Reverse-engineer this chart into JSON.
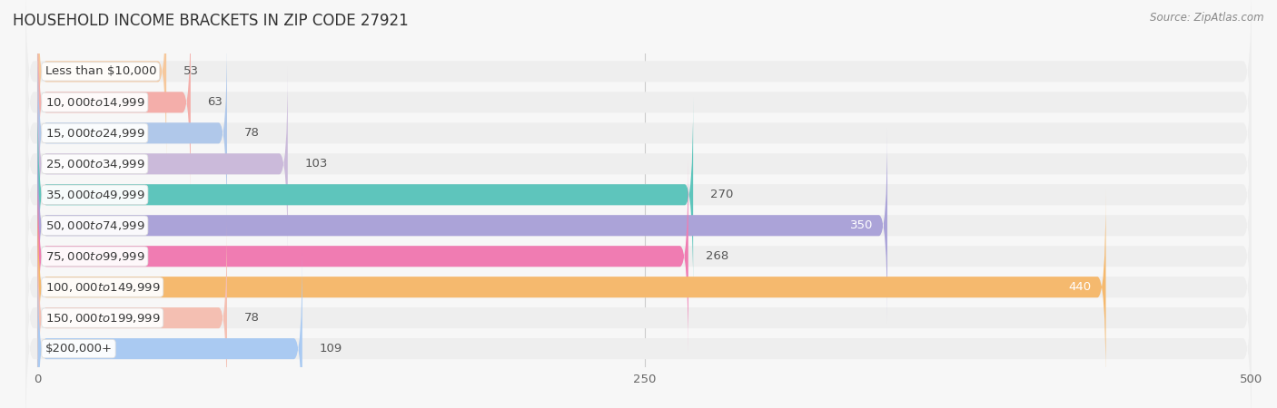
{
  "title": "HOUSEHOLD INCOME BRACKETS IN ZIP CODE 27921",
  "source": "Source: ZipAtlas.com",
  "categories": [
    "Less than $10,000",
    "$10,000 to $14,999",
    "$15,000 to $24,999",
    "$25,000 to $34,999",
    "$35,000 to $49,999",
    "$50,000 to $74,999",
    "$75,000 to $99,999",
    "$100,000 to $149,999",
    "$150,000 to $199,999",
    "$200,000+"
  ],
  "values": [
    53,
    63,
    78,
    103,
    270,
    350,
    268,
    440,
    78,
    109
  ],
  "bar_colors": [
    "#f6c89c",
    "#f4aeaa",
    "#b0c8ea",
    "#cbbada",
    "#5ec5bc",
    "#aba3d8",
    "#f07cb2",
    "#f5b96e",
    "#f4bfb2",
    "#aacaf2"
  ],
  "value_inside": [
    false,
    false,
    false,
    false,
    false,
    true,
    false,
    true,
    false,
    false
  ],
  "xlim_min": 0,
  "xlim_max": 500,
  "xticks": [
    0,
    250,
    500
  ],
  "bg_color": "#f7f7f7",
  "row_bg_color": "#eeeeee",
  "title_fontsize": 12,
  "label_fontsize": 9.5,
  "value_fontsize": 9.5
}
